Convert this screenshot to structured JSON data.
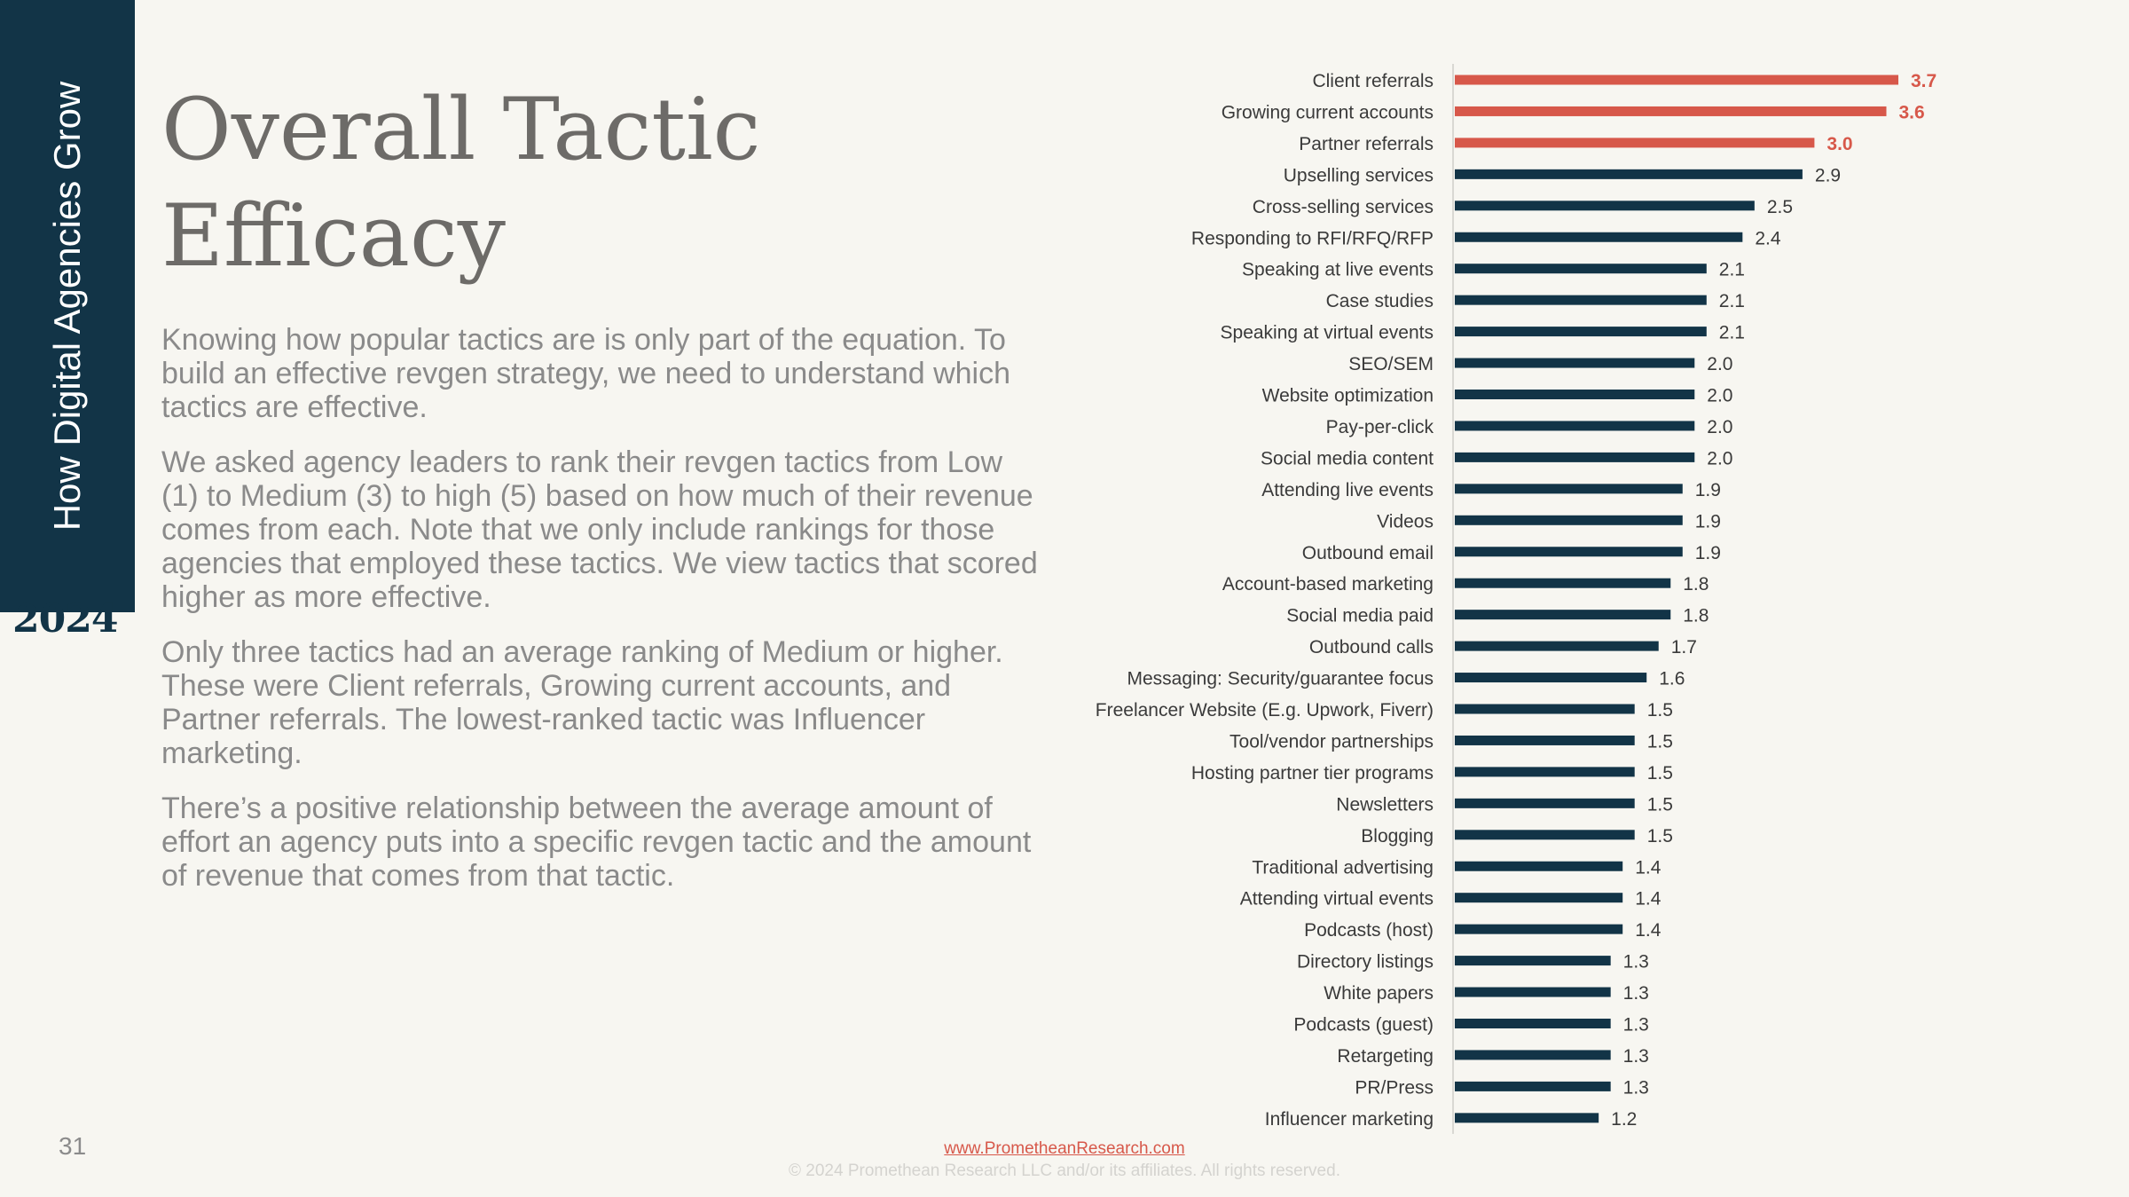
{
  "sidebar": {
    "title": "How Digital Agencies Grow",
    "year": "2024"
  },
  "page": {
    "title": "Overall Tactic Efficacy",
    "paragraphs": [
      "Knowing how popular tactics are is only part of the equation. To build an effective revgen strategy, we need to understand which tactics are effective.",
      "We asked agency leaders to rank their revgen tactics from Low (1) to Medium (3) to high (5) based on how much of their revenue comes from each. Note that we only include rankings for those agencies that employed these tactics. We view tactics that scored higher as more effective.",
      "Only three tactics had an average ranking of Medium or higher. These were Client referrals, Growing current accounts, and Partner referrals. The lowest-ranked tactic was Influencer marketing.",
      "There’s a positive relationship between the average amount of effort an agency puts into a specific revgen tactic and the amount of revenue that comes from that tactic."
    ],
    "page_number": "31"
  },
  "footer": {
    "link": "www.PrometheanResearch.com",
    "copyright": "© 2024 Promethean Research LLC and/or its affiliates. All rights reserved."
  },
  "colors": {
    "highlight": "#d7584a",
    "default": "#123447",
    "label": "#3a3a3a"
  },
  "chart_data": {
    "type": "bar",
    "orientation": "horizontal",
    "categories": [
      "Client referrals",
      "Growing current accounts",
      "Partner referrals",
      "Upselling services",
      "Cross-selling services",
      "Responding to RFI/RFQ/RFP",
      "Speaking at live events",
      "Case studies",
      "Speaking at virtual events",
      "SEO/SEM",
      "Website optimization",
      "Pay-per-click",
      "Social media content",
      "Attending live events",
      "Videos",
      "Outbound email",
      "Account-based marketing",
      "Social media paid",
      "Outbound calls",
      "Messaging: Security/guarantee focus",
      "Freelancer Website (E.g. Upwork, Fiverr)",
      "Tool/vendor partnerships",
      "Hosting partner tier programs",
      "Newsletters",
      "Blogging",
      "Traditional advertising",
      "Attending virtual events",
      "Podcasts (host)",
      "Directory listings",
      "White papers",
      "Podcasts (guest)",
      "Retargeting",
      "PR/Press",
      "Influencer marketing"
    ],
    "values": [
      3.7,
      3.6,
      3.0,
      2.9,
      2.5,
      2.4,
      2.1,
      2.1,
      2.1,
      2.0,
      2.0,
      2.0,
      2.0,
      1.9,
      1.9,
      1.9,
      1.8,
      1.8,
      1.7,
      1.6,
      1.5,
      1.5,
      1.5,
      1.5,
      1.5,
      1.4,
      1.4,
      1.4,
      1.3,
      1.3,
      1.3,
      1.3,
      1.3,
      1.2
    ],
    "value_labels": [
      "3.7",
      "3.6",
      "3.0",
      "2.9",
      "2.5",
      "2.4",
      "2.1",
      "2.1",
      "2.1",
      "2.0",
      "2.0",
      "2.0",
      "2.0",
      "1.9",
      "1.9",
      "1.9",
      "1.8",
      "1.8",
      "1.7",
      "1.6",
      "1.5",
      "1.5",
      "1.5",
      "1.5",
      "1.5",
      "1.4",
      "1.4",
      "1.4",
      "1.3",
      "1.3",
      "1.3",
      "1.3",
      "1.3",
      "1.2"
    ],
    "highlighted_top": 3,
    "xlim": [
      1,
      3.7
    ],
    "grid": false,
    "legend": "none"
  }
}
